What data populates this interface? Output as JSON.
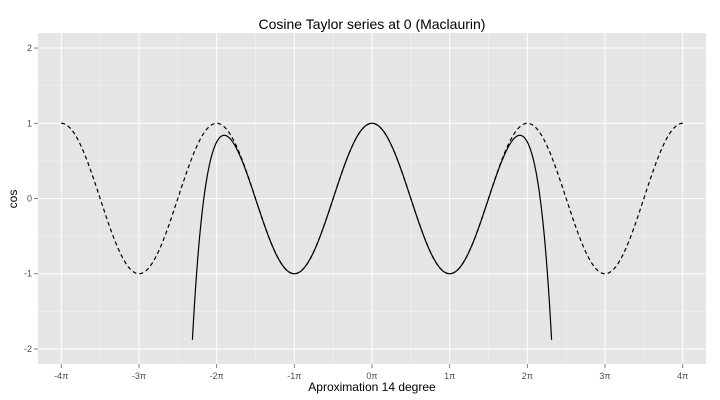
{
  "chart_data": {
    "type": "line",
    "title": "Cosine Taylor series at 0 (Maclaurin)",
    "xlabel": "Aproximation  14 degree",
    "ylabel": "cos",
    "x_unit": "pi",
    "xlim": [
      -4.3,
      4.3
    ],
    "ylim": [
      -2.2,
      2.2
    ],
    "x_ticks": [
      -4,
      -3,
      -2,
      -1,
      0,
      1,
      2,
      3,
      4
    ],
    "x_tick_labels": [
      "-4π",
      "-3π",
      "-2π",
      "-1π",
      "0π",
      "1π",
      "2π",
      "3π",
      "4π"
    ],
    "y_ticks": [
      -2,
      -1,
      0,
      1,
      2
    ],
    "y_tick_labels": [
      "-2",
      "-1",
      "0",
      "1",
      "2"
    ],
    "grid": true,
    "panel_background": "#e5e5e5",
    "grid_color": "#ffffff",
    "series": [
      {
        "function": "cos(x)",
        "x_range": [
          -4,
          4
        ],
        "style": "dashed",
        "color": "#000000"
      },
      {
        "function": "Taylor polynomial of cos(x) at 0, degree 14",
        "degree": 14,
        "x_range": [
          -2.312,
          2.312
        ],
        "style": "solid",
        "color": "#000000"
      }
    ]
  }
}
